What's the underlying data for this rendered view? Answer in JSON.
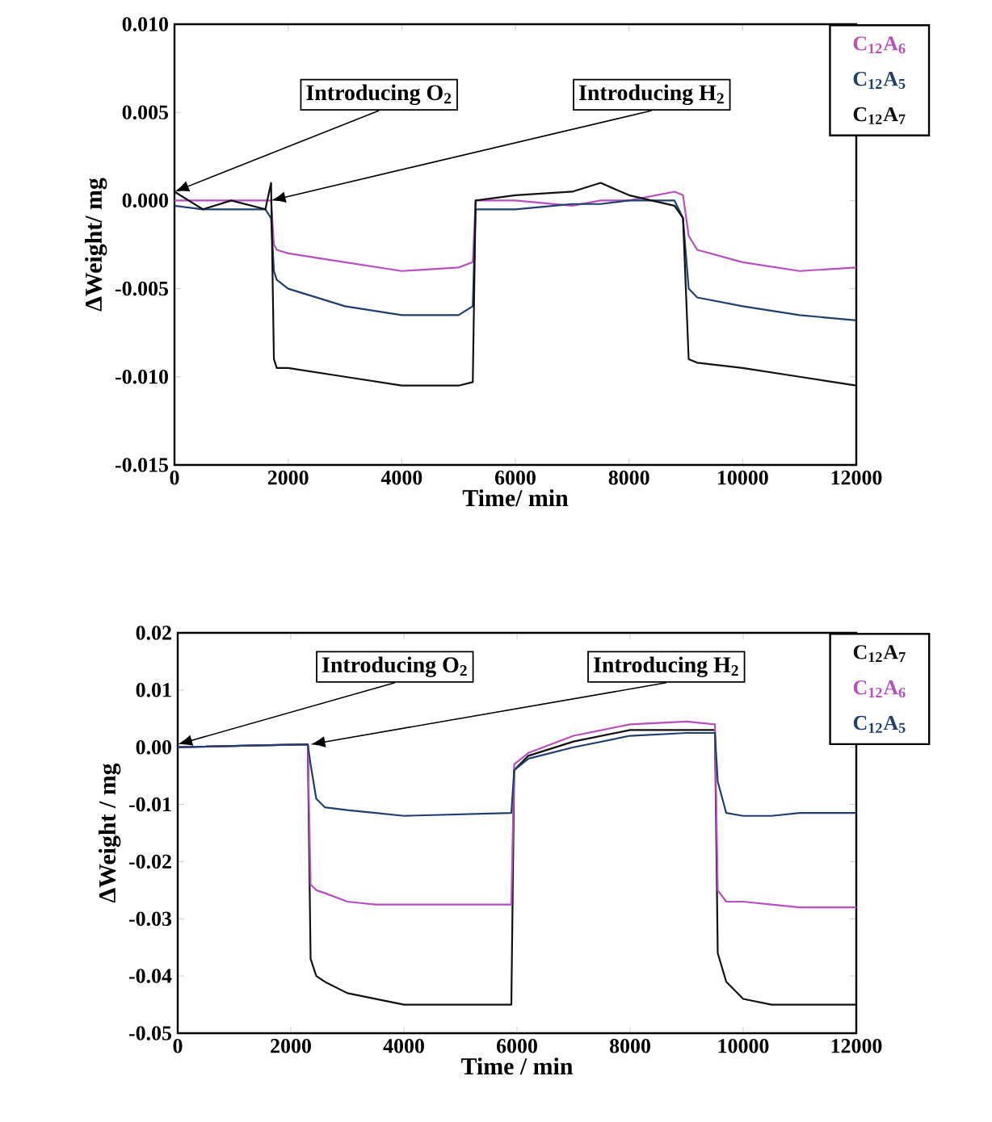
{
  "chart_data": [
    {
      "type": "line",
      "xlabel": "Time/ min",
      "ylabel": "ΔWeight/ mg",
      "xlim": [
        0,
        12000
      ],
      "ylim": [
        -0.015,
        0.01
      ],
      "xticks": [
        0,
        2000,
        4000,
        6000,
        8000,
        10000,
        12000
      ],
      "yticks": [
        {
          "value": 0.01,
          "label": "0.010"
        },
        0.005,
        {
          "value": 0,
          "label": "0.000"
        },
        -0.005,
        {
          "value": -0.01,
          "label": "-0.010"
        },
        -0.015
      ],
      "marker": "none",
      "line_style": "solid",
      "x": [
        0,
        500,
        1000,
        1600,
        1700,
        1750,
        1800,
        2000,
        3000,
        4000,
        5000,
        5250,
        5300,
        6000,
        7000,
        7500,
        8000,
        8800,
        8950,
        9050,
        9200,
        10000,
        11000,
        12000
      ],
      "series": [
        {
          "name": "C$_{12}$A$_{6}$",
          "color": "#b84fbe",
          "values": [
            0,
            0,
            0,
            0,
            0,
            -0.0025,
            -0.0028,
            -0.003,
            -0.0035,
            -0.004,
            -0.0038,
            -0.0035,
            0,
            0,
            -0.0003,
            0,
            0,
            0.0005,
            0.0003,
            -0.002,
            -0.0028,
            -0.0035,
            -0.004,
            -0.0038
          ]
        },
        {
          "name": "C$_{12}$A$_{5}$",
          "color": "#1f3f6f",
          "values": [
            -0.0003,
            -0.0005,
            -0.0005,
            -0.0005,
            -0.001,
            -0.004,
            -0.0045,
            -0.005,
            -0.006,
            -0.0065,
            -0.0065,
            -0.006,
            -0.0005,
            -0.0005,
            -0.0002,
            -0.0002,
            0,
            0,
            -0.001,
            -0.005,
            -0.0055,
            -0.006,
            -0.0065,
            -0.0068
          ]
        },
        {
          "name": "C$_{12}$A$_{7}$",
          "color": "#111111",
          "values": [
            0.0005,
            -0.0005,
            0,
            -0.0005,
            0.001,
            -0.009,
            -0.0095,
            -0.0095,
            -0.01,
            -0.0105,
            -0.0105,
            -0.0103,
            0,
            0.0003,
            0.0005,
            0.001,
            0.0003,
            -0.0003,
            -0.001,
            -0.009,
            -0.0092,
            -0.0095,
            -0.01,
            -0.0105
          ]
        }
      ],
      "annotations": [
        {
          "text": "Introducing O$_{2}$",
          "x": 0,
          "y": 0.0005
        },
        {
          "text": "Introducing H$_{2}$",
          "x": 1700,
          "y": 0
        }
      ]
    },
    {
      "type": "line",
      "xlabel": "Time / min",
      "ylabel": "ΔWeight / mg",
      "xlim": [
        0,
        12000
      ],
      "ylim": [
        -0.05,
        0.02
      ],
      "xticks": [
        0,
        2000,
        4000,
        6000,
        8000,
        10000,
        12000
      ],
      "yticks": [
        0.02,
        0.01,
        {
          "value": 0,
          "label": "0.00"
        },
        -0.01,
        -0.02,
        -0.03,
        -0.04,
        -0.05
      ],
      "marker": "none",
      "line_style": "solid",
      "x": [
        0,
        2300,
        2350,
        2450,
        2600,
        3000,
        3500,
        4000,
        5900,
        5950,
        6200,
        7000,
        8000,
        9000,
        9500,
        9550,
        9700,
        10000,
        10500,
        11000,
        12000
      ],
      "series": [
        {
          "name": "C$_{12}$A$_{7}$",
          "color": "#111111",
          "values": [
            0,
            0.0005,
            -0.037,
            -0.04,
            -0.041,
            -0.043,
            -0.044,
            -0.045,
            -0.045,
            -0.004,
            -0.0015,
            0.001,
            0.003,
            0.003,
            0.003,
            -0.036,
            -0.041,
            -0.044,
            -0.045,
            -0.045,
            -0.045
          ]
        },
        {
          "name": "C$_{12}$A$_{6}$",
          "color": "#b84fbe",
          "values": [
            0,
            0.0005,
            -0.024,
            -0.025,
            -0.0255,
            -0.027,
            -0.0275,
            -0.0275,
            -0.0275,
            -0.003,
            -0.001,
            0.002,
            0.004,
            0.0045,
            0.004,
            -0.025,
            -0.027,
            -0.027,
            -0.0275,
            -0.028,
            -0.028
          ]
        },
        {
          "name": "C$_{12}$A$_{5}$",
          "color": "#1f3f6f",
          "values": [
            0,
            0.0005,
            -0.003,
            -0.009,
            -0.0105,
            -0.011,
            -0.0115,
            -0.012,
            -0.0115,
            -0.004,
            -0.002,
            0,
            0.002,
            0.0025,
            0.0025,
            -0.006,
            -0.0115,
            -0.012,
            -0.012,
            -0.0115,
            -0.0115
          ]
        }
      ],
      "annotations": [
        {
          "text": "Introducing O$_{2}$",
          "x": 0,
          "y": 0.0005
        },
        {
          "text": "Introducing H$_{2}$",
          "x": 2350,
          "y": 0.0005
        }
      ]
    }
  ]
}
